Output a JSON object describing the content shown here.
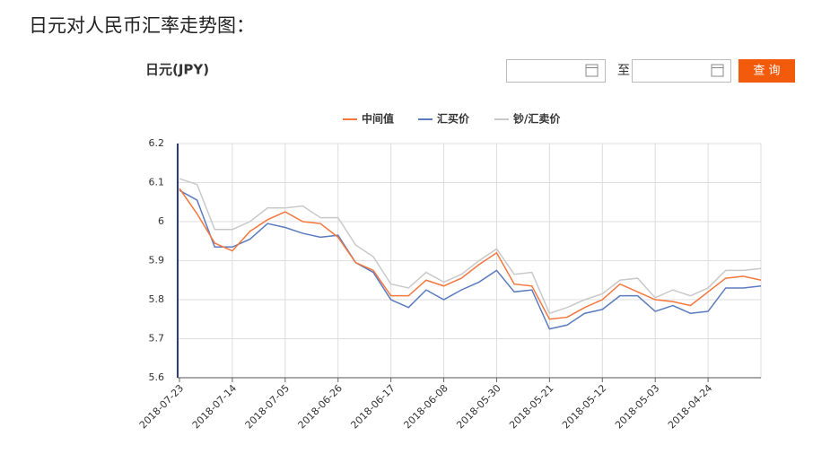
{
  "header": {
    "title": "日元对人民币汇率走势图："
  },
  "form": {
    "currency": "日元(JPY)",
    "separator": "至",
    "button": "查 询"
  },
  "chart_data": {
    "type": "line",
    "categories": [
      "2018-07-23",
      null,
      null,
      "2018-07-14",
      null,
      null,
      "2018-07-05",
      null,
      null,
      "2018-06-26",
      null,
      null,
      "2018-06-17",
      null,
      null,
      "2018-06-08",
      null,
      null,
      "2018-05-30",
      null,
      null,
      "2018-05-21",
      null,
      null,
      "2018-05-12",
      null,
      null,
      "2018-05-03",
      null,
      null,
      "2018-04-24",
      null,
      null,
      null
    ],
    "series": [
      {
        "name": "中间值",
        "color": "#f4763c",
        "values": [
          6.085,
          6.02,
          5.945,
          5.925,
          5.975,
          6.005,
          6.025,
          6.0,
          5.995,
          5.96,
          5.895,
          5.875,
          5.81,
          5.81,
          5.85,
          5.835,
          5.855,
          5.89,
          5.92,
          5.84,
          5.835,
          5.75,
          5.755,
          5.78,
          5.8,
          5.84,
          5.82,
          5.8,
          5.795,
          5.785,
          5.82,
          5.855,
          5.86,
          5.85
        ]
      },
      {
        "name": "汇买价",
        "color": "#5b7bbf",
        "values": [
          6.08,
          6.055,
          5.935,
          5.935,
          5.955,
          5.995,
          5.985,
          5.97,
          5.96,
          5.965,
          5.895,
          5.87,
          5.8,
          5.78,
          5.825,
          5.8,
          5.825,
          5.845,
          5.875,
          5.82,
          5.825,
          5.725,
          5.735,
          5.765,
          5.775,
          5.81,
          5.81,
          5.77,
          5.785,
          5.765,
          5.77,
          5.83,
          5.83,
          5.835
        ]
      },
      {
        "name": "钞/汇卖价",
        "color": "#c9c9c9",
        "values": [
          6.11,
          6.095,
          5.98,
          5.98,
          6.0,
          6.035,
          6.035,
          6.04,
          6.01,
          6.01,
          5.94,
          5.91,
          5.84,
          5.83,
          5.87,
          5.845,
          5.865,
          5.9,
          5.93,
          5.865,
          5.87,
          5.765,
          5.78,
          5.8,
          5.815,
          5.85,
          5.855,
          5.805,
          5.825,
          5.81,
          5.83,
          5.875,
          5.875,
          5.88
        ]
      }
    ],
    "ylim": [
      5.6,
      6.2
    ],
    "yticks": [
      5.6,
      5.7,
      5.8,
      5.9,
      6,
      6.1,
      6.2
    ],
    "grid": true
  }
}
